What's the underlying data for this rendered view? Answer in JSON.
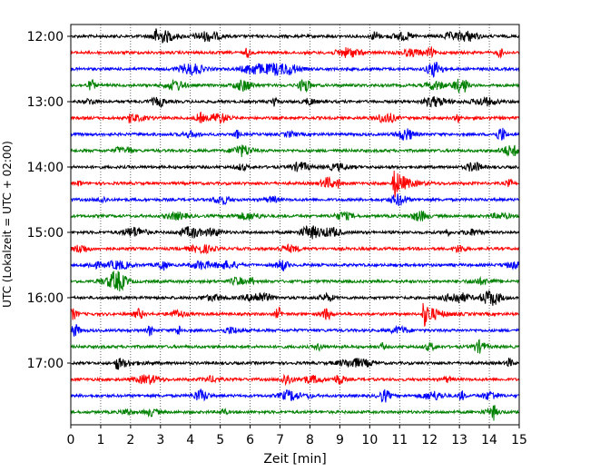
{
  "chart_data": {
    "type": "line",
    "xlabel": "Zeit  [min]",
    "ylabel": "UTC (Lokalzeit = UTC + 02:00)",
    "xlim": [
      0,
      15
    ],
    "x_ticks": [
      0,
      1,
      2,
      3,
      4,
      5,
      6,
      7,
      8,
      9,
      10,
      11,
      12,
      13,
      14,
      15
    ],
    "x_tick_labels": [
      "0",
      "1",
      "2",
      "3",
      "4",
      "5",
      "6",
      "7",
      "8",
      "9",
      "10",
      "11",
      "12",
      "13",
      "14",
      "15"
    ],
    "y_tick_labels": [
      "12:00",
      "13:00",
      "14:00",
      "15:00",
      "16:00",
      "17:00"
    ],
    "rows_per_hour": 4,
    "row_minutes": 15,
    "row_start_times": [
      "12:00",
      "12:15",
      "12:30",
      "12:45",
      "13:00",
      "13:15",
      "13:30",
      "13:45",
      "14:00",
      "14:15",
      "14:30",
      "14:45",
      "15:00",
      "15:15",
      "15:30",
      "15:45",
      "16:00",
      "16:15",
      "16:30",
      "16:45",
      "17:00",
      "17:15",
      "17:30",
      "17:45"
    ],
    "row_colors": [
      "#000000",
      "#ff0000",
      "#0000ff",
      "#008000"
    ],
    "grid": "vertical dotted lines at each minute",
    "events": [
      {
        "row_start": "14:15",
        "time_min": 10.8,
        "relative_amplitude": 1.0
      },
      {
        "row_start": "16:15",
        "time_min": 11.8,
        "relative_amplitude": 0.85
      },
      {
        "row_start": "17:00",
        "time_min": 1.5,
        "relative_amplitude": 0.45
      },
      {
        "row_start": "13:15",
        "time_min": 2.0,
        "relative_amplitude": 0.3
      }
    ]
  }
}
